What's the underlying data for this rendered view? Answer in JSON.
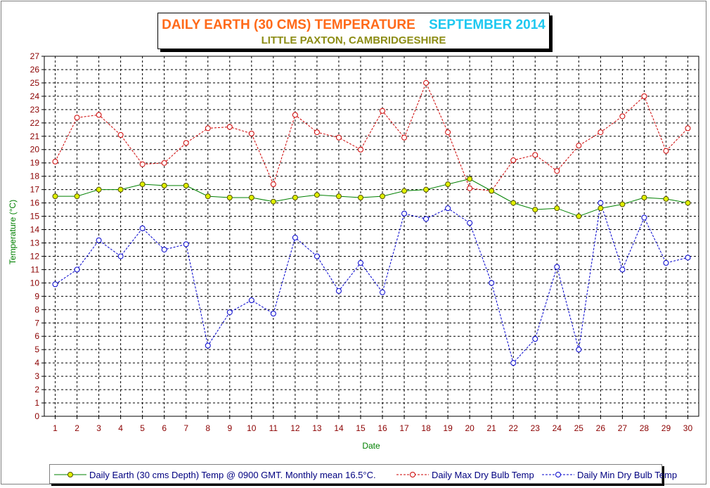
{
  "chart_data": {
    "type": "line",
    "title": "DAILY EARTH (30 CMS) TEMPERATURE",
    "title_month": "SEPTEMBER 2014",
    "subtitle": "LITTLE PAXTON, CAMBRIDGESHIRE",
    "xlabel": "Date",
    "ylabel": "Temperature (°C)",
    "ylim": [
      0,
      27
    ],
    "grid": true,
    "legend_position": "bottom",
    "x": [
      1,
      2,
      3,
      4,
      5,
      6,
      7,
      8,
      9,
      10,
      11,
      12,
      13,
      14,
      15,
      16,
      17,
      18,
      19,
      20,
      21,
      22,
      23,
      24,
      25,
      26,
      27,
      28,
      29,
      30
    ],
    "y_ticks": [
      0,
      1,
      2,
      3,
      4,
      5,
      6,
      7,
      8,
      9,
      10,
      11,
      12,
      13,
      14,
      15,
      16,
      17,
      18,
      19,
      20,
      21,
      22,
      23,
      24,
      25,
      26,
      27
    ],
    "series": [
      {
        "name": "Daily Earth (30 cms Depth) Temp @ 0900 GMT. Monthly mean 16.5°C.",
        "color": "#008000",
        "marker_color": "#e0f000",
        "style": "solid",
        "values": [
          16.5,
          16.5,
          17.0,
          17.0,
          17.4,
          17.3,
          17.3,
          16.5,
          16.4,
          16.4,
          16.1,
          16.4,
          16.6,
          16.5,
          16.4,
          16.5,
          16.9,
          17.0,
          17.4,
          17.8,
          16.9,
          16.0,
          15.5,
          15.6,
          15.0,
          15.6,
          15.9,
          16.4,
          16.3,
          16.0
        ]
      },
      {
        "name": "Daily Max Dry Bulb Temp",
        "color": "#cc0000",
        "marker_color": "#ffffff",
        "style": "dashed",
        "values": [
          19.1,
          22.4,
          22.6,
          21.1,
          18.9,
          19.0,
          20.5,
          21.6,
          21.7,
          21.2,
          17.4,
          22.6,
          21.3,
          20.9,
          20.0,
          22.9,
          20.9,
          25.0,
          21.3,
          17.1,
          16.9,
          19.2,
          19.6,
          18.4,
          20.3,
          21.3,
          22.5,
          24.0,
          19.9,
          21.6
        ]
      },
      {
        "name": "Daily Min Dry Bulb Temp",
        "color": "#0000cc",
        "marker_color": "#ffffff",
        "style": "dashed",
        "values": [
          9.9,
          11.0,
          13.2,
          12.0,
          14.1,
          12.5,
          12.9,
          5.3,
          7.8,
          8.7,
          7.7,
          13.4,
          12.0,
          9.4,
          11.5,
          9.3,
          15.2,
          14.8,
          15.6,
          14.5,
          10.0,
          4.0,
          5.8,
          11.2,
          5.0,
          16.0,
          11.0,
          14.9,
          11.5,
          11.9
        ]
      }
    ]
  }
}
